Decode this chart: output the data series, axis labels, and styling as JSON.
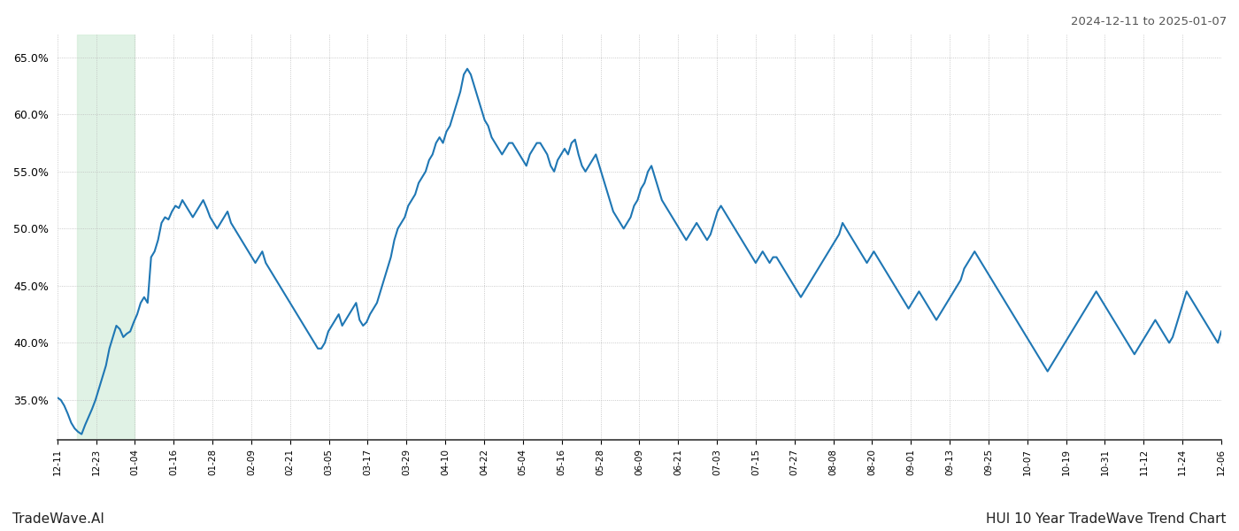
{
  "title_top_right": "2024-12-11 to 2025-01-07",
  "title_bottom_left": "TradeWave.AI",
  "title_bottom_right": "HUI 10 Year TradeWave Trend Chart",
  "line_color": "#1f77b4",
  "line_width": 1.5,
  "shade_color": "#d4edda",
  "shade_alpha": 0.7,
  "background_color": "#ffffff",
  "grid_color": "#bbbbbb",
  "ylim": [
    31.5,
    67.0
  ],
  "yticks": [
    35.0,
    40.0,
    45.0,
    50.0,
    55.0,
    60.0,
    65.0
  ],
  "x_labels": [
    "12-11",
    "12-23",
    "01-04",
    "01-16",
    "01-28",
    "02-09",
    "02-21",
    "03-05",
    "03-17",
    "03-29",
    "04-10",
    "04-22",
    "05-04",
    "05-16",
    "05-28",
    "06-09",
    "06-21",
    "07-03",
    "07-15",
    "07-27",
    "08-08",
    "08-20",
    "09-01",
    "09-13",
    "09-25",
    "10-07",
    "10-19",
    "10-31",
    "11-12",
    "11-24",
    "12-06"
  ],
  "shade_label_start": "12-17",
  "shade_label_end": "01-04",
  "y_values": [
    35.2,
    35.0,
    34.5,
    33.8,
    33.0,
    32.5,
    32.2,
    32.0,
    32.8,
    33.5,
    34.2,
    35.0,
    36.0,
    37.0,
    38.0,
    39.5,
    40.5,
    41.5,
    41.2,
    40.5,
    40.8,
    41.0,
    41.8,
    42.5,
    43.5,
    44.0,
    43.5,
    47.5,
    48.0,
    49.0,
    50.5,
    51.0,
    50.8,
    51.5,
    52.0,
    51.8,
    52.5,
    52.0,
    51.5,
    51.0,
    51.5,
    52.0,
    52.5,
    51.8,
    51.0,
    50.5,
    50.0,
    50.5,
    51.0,
    51.5,
    50.5,
    50.0,
    49.5,
    49.0,
    48.5,
    48.0,
    47.5,
    47.0,
    47.5,
    48.0,
    47.0,
    46.5,
    46.0,
    45.5,
    45.0,
    44.5,
    44.0,
    43.5,
    43.0,
    42.5,
    42.0,
    41.5,
    41.0,
    40.5,
    40.0,
    39.5,
    39.5,
    40.0,
    41.0,
    41.5,
    42.0,
    42.5,
    41.5,
    42.0,
    42.5,
    43.0,
    43.5,
    42.0,
    41.5,
    41.8,
    42.5,
    43.0,
    43.5,
    44.5,
    45.5,
    46.5,
    47.5,
    49.0,
    50.0,
    50.5,
    51.0,
    52.0,
    52.5,
    53.0,
    54.0,
    54.5,
    55.0,
    56.0,
    56.5,
    57.5,
    58.0,
    57.5,
    58.5,
    59.0,
    60.0,
    61.0,
    62.0,
    63.5,
    64.0,
    63.5,
    62.5,
    61.5,
    60.5,
    59.5,
    59.0,
    58.0,
    57.5,
    57.0,
    56.5,
    57.0,
    57.5,
    57.5,
    57.0,
    56.5,
    56.0,
    55.5,
    56.5,
    57.0,
    57.5,
    57.5,
    57.0,
    56.5,
    55.5,
    55.0,
    56.0,
    56.5,
    57.0,
    56.5,
    57.5,
    57.8,
    56.5,
    55.5,
    55.0,
    55.5,
    56.0,
    56.5,
    55.5,
    54.5,
    53.5,
    52.5,
    51.5,
    51.0,
    50.5,
    50.0,
    50.5,
    51.0,
    52.0,
    52.5,
    53.5,
    54.0,
    55.0,
    55.5,
    54.5,
    53.5,
    52.5,
    52.0,
    51.5,
    51.0,
    50.5,
    50.0,
    49.5,
    49.0,
    49.5,
    50.0,
    50.5,
    50.0,
    49.5,
    49.0,
    49.5,
    50.5,
    51.5,
    52.0,
    51.5,
    51.0,
    50.5,
    50.0,
    49.5,
    49.0,
    48.5,
    48.0,
    47.5,
    47.0,
    47.5,
    48.0,
    47.5,
    47.0,
    47.5,
    47.5,
    47.0,
    46.5,
    46.0,
    45.5,
    45.0,
    44.5,
    44.0,
    44.5,
    45.0,
    45.5,
    46.0,
    46.5,
    47.0,
    47.5,
    48.0,
    48.5,
    49.0,
    49.5,
    50.5,
    50.0,
    49.5,
    49.0,
    48.5,
    48.0,
    47.5,
    47.0,
    47.5,
    48.0,
    47.5,
    47.0,
    46.5,
    46.0,
    45.5,
    45.0,
    44.5,
    44.0,
    43.5,
    43.0,
    43.5,
    44.0,
    44.5,
    44.0,
    43.5,
    43.0,
    42.5,
    42.0,
    42.5,
    43.0,
    43.5,
    44.0,
    44.5,
    45.0,
    45.5,
    46.5,
    47.0,
    47.5,
    48.0,
    47.5,
    47.0,
    46.5,
    46.0,
    45.5,
    45.0,
    44.5,
    44.0,
    43.5,
    43.0,
    42.5,
    42.0,
    41.5,
    41.0,
    40.5,
    40.0,
    39.5,
    39.0,
    38.5,
    38.0,
    37.5,
    38.0,
    38.5,
    39.0,
    39.5,
    40.0,
    40.5,
    41.0,
    41.5,
    42.0,
    42.5,
    43.0,
    43.5,
    44.0,
    44.5,
    44.0,
    43.5,
    43.0,
    42.5,
    42.0,
    41.5,
    41.0,
    40.5,
    40.0,
    39.5,
    39.0,
    39.5,
    40.0,
    40.5,
    41.0,
    41.5,
    42.0,
    41.5,
    41.0,
    40.5,
    40.0,
    40.5,
    41.5,
    42.5,
    43.5,
    44.5,
    44.0,
    43.5,
    43.0,
    42.5,
    42.0,
    41.5,
    41.0,
    40.5,
    40.0,
    41.0
  ]
}
